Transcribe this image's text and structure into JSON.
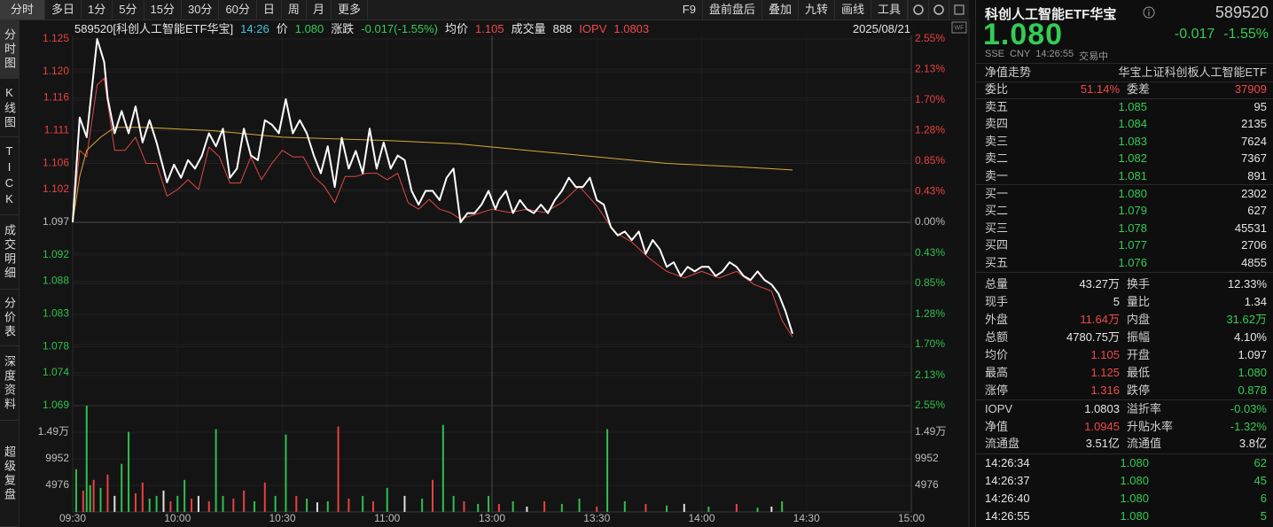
{
  "toolbar": {
    "periods": [
      "分时",
      "多日",
      "1分",
      "5分",
      "15分",
      "30分",
      "60分",
      "日",
      "周",
      "月",
      "更多"
    ],
    "tools": [
      "F9",
      "盘前盘后",
      "叠加",
      "九转",
      "画线",
      "工具"
    ]
  },
  "side_tabs": [
    "分时图",
    "K线图",
    "TICK",
    "成交明细",
    "分价表",
    "深度资料",
    "超级复盘"
  ],
  "info": {
    "code_name": "589520[科创人工智能ETF华宝]",
    "time": "14:26",
    "price": "1.080",
    "change_label": "涨跌",
    "change": "-0.017(-1.55%)",
    "avg": "1.105",
    "volume_label": "成交量",
    "volume": "888",
    "iopv": "1.0803",
    "date": "2025/08/21"
  },
  "chart": {
    "type": "line",
    "xlim": [
      0,
      240
    ],
    "xticks": [
      {
        "value": 0,
        "label": "09:30"
      },
      {
        "value": 30,
        "label": "10:00"
      },
      {
        "value": 60,
        "label": "10:30"
      },
      {
        "value": 90,
        "label": "11:00"
      },
      {
        "value": 120,
        "label": "13:00"
      },
      {
        "value": 150,
        "label": "13:30"
      },
      {
        "value": 180,
        "label": "14:00"
      },
      {
        "value": 210,
        "label": "14:30"
      },
      {
        "value": 240,
        "label": "15:00"
      }
    ],
    "ylim": [
      1.069,
      1.125
    ],
    "yticks": [
      1.125,
      {
        "value": 1.12,
        "label": "1.120"
      },
      1.116,
      1.111,
      1.106,
      1.102,
      1.097,
      1.092,
      1.088,
      1.083,
      1.078,
      1.074,
      1.069
    ],
    "y2lim": [
      -2.55,
      2.55
    ],
    "y2ticks": [
      {
        "value": 2.55,
        "label": "2.55%"
      },
      {
        "value": 2.13,
        "label": "2.13%"
      },
      {
        "value": 1.7,
        "label": "1.70%"
      },
      {
        "value": 1.28,
        "label": "1.28%"
      },
      {
        "value": 0.85,
        "label": "0.85%"
      },
      {
        "value": 0.43,
        "label": "0.43%"
      },
      {
        "value": 0,
        "label": "0.00%"
      },
      {
        "value": -0.43,
        "label": "0.43%"
      },
      {
        "value": -0.85,
        "label": "0.85%"
      },
      {
        "value": -1.28,
        "label": "1.28%"
      },
      {
        "value": -1.7,
        "label": "1.70%"
      },
      {
        "value": -2.13,
        "label": "2.13%"
      },
      {
        "value": -2.55,
        "label": "2.55%"
      }
    ],
    "series": [
      {
        "name": "价",
        "color": "#ffffff",
        "x": [
          0,
          2,
          4,
          6,
          7,
          9,
          10,
          12,
          14,
          16,
          18,
          20,
          22,
          24,
          27,
          29,
          31,
          33,
          35,
          37,
          39,
          41,
          43,
          45,
          47,
          49,
          51,
          53,
          55,
          57,
          59,
          61,
          63,
          65,
          67,
          69,
          71,
          73,
          75,
          77,
          79,
          81,
          83,
          85,
          87,
          89,
          91,
          93,
          95,
          97,
          99,
          101,
          103,
          105,
          107,
          109,
          111,
          113,
          115,
          117,
          119,
          121,
          122,
          124,
          126,
          128,
          130,
          132,
          134,
          136,
          138,
          140,
          142,
          144,
          146,
          148,
          150,
          152,
          154,
          156,
          158,
          160,
          162,
          164,
          166,
          168,
          170,
          172,
          174,
          176,
          178,
          180,
          182,
          184,
          186,
          188,
          190,
          192,
          194,
          196,
          198,
          200,
          202,
          204,
          206
        ],
        "values": [
          1.097,
          1.113,
          1.11,
          1.12,
          1.125,
          1.1215,
          1.116,
          1.1106,
          1.114,
          1.1106,
          1.1147,
          1.1092,
          1.1126,
          1.1092,
          1.1031,
          1.1058,
          1.1038,
          1.1065,
          1.1052,
          1.1072,
          1.1106,
          1.1086,
          1.1113,
          1.1038,
          1.1052,
          1.1113,
          1.1072,
          1.1065,
          1.1126,
          1.1119,
          1.1106,
          1.1158,
          1.1106,
          1.1126,
          1.1106,
          1.1072,
          1.1045,
          1.1086,
          1.1024,
          1.1099,
          1.1052,
          1.1079,
          1.1045,
          1.1113,
          1.1052,
          1.1092,
          1.1052,
          1.1072,
          1.1065,
          1.1018,
          1.0997,
          1.1018,
          1.1018,
          1.1004,
          1.1038,
          1.1052,
          1.097,
          1.0984,
          1.0984,
          1.0997,
          1.1018,
          1.099,
          1.1004,
          1.1018,
          1.0984,
          1.1004,
          1.099,
          1.0984,
          1.0997,
          1.0984,
          1.1004,
          1.1018,
          1.1038,
          1.1024,
          1.1024,
          1.1038,
          1.1004,
          1.0997,
          1.0963,
          1.095,
          1.0956,
          1.0943,
          1.0956,
          1.0922,
          1.0943,
          1.0929,
          1.0902,
          1.0909,
          1.0888,
          1.0902,
          1.0895,
          1.0902,
          1.0902,
          1.0888,
          1.0895,
          1.0909,
          1.0902,
          1.0888,
          1.0882,
          1.0895,
          1.0882,
          1.0875,
          1.0861,
          1.0834,
          1.08
        ]
      },
      {
        "name": "IOPV",
        "color": "#e04848",
        "x": [
          0,
          2,
          4,
          7,
          9,
          12,
          15,
          18,
          21,
          24,
          27,
          30,
          33,
          36,
          39,
          42,
          45,
          48,
          51,
          54,
          57,
          60,
          63,
          66,
          69,
          72,
          75,
          78,
          81,
          84,
          87,
          90,
          93,
          96,
          99,
          102,
          105,
          108,
          111,
          114,
          117,
          120,
          125,
          130,
          135,
          140,
          145,
          150,
          155,
          160,
          165,
          170,
          175,
          180,
          185,
          190,
          195,
          200,
          203,
          206
        ],
        "values": [
          1.097,
          1.108,
          1.107,
          1.118,
          1.119,
          1.108,
          1.108,
          1.11,
          1.106,
          1.106,
          1.101,
          1.102,
          1.1035,
          1.102,
          1.1085,
          1.107,
          1.103,
          1.103,
          1.107,
          1.1035,
          1.106,
          1.108,
          1.107,
          1.107,
          1.104,
          1.1025,
          1.1,
          1.104,
          1.104,
          1.1045,
          1.1045,
          1.1035,
          1.1045,
          1.1,
          1.099,
          1.1005,
          1.099,
          1.0985,
          1.0975,
          1.098,
          1.0985,
          1.099,
          1.0985,
          1.099,
          1.0985,
          1.1,
          1.1025,
          1.0995,
          1.0955,
          1.094,
          1.0915,
          1.0895,
          1.0885,
          1.0895,
          1.0885,
          1.0895,
          1.0875,
          1.0865,
          1.082,
          1.0795
        ]
      },
      {
        "name": "均价",
        "color": "#d9a93a",
        "x": [
          0,
          2,
          4,
          8,
          12,
          20,
          40,
          60,
          90,
          110,
          130,
          150,
          170,
          190,
          206
        ],
        "values": [
          1.097,
          1.104,
          1.108,
          1.11,
          1.1115,
          1.1115,
          1.111,
          1.11,
          1.1095,
          1.109,
          1.108,
          1.107,
          1.106,
          1.1055,
          1.105
        ]
      }
    ],
    "volume": {
      "type": "bar",
      "ylim": [
        0,
        19904
      ],
      "yticks": [
        {
          "value": 14928,
          "label": "1.49万"
        },
        9952,
        4976
      ],
      "x": [
        1,
        3,
        4,
        5,
        6,
        8,
        10,
        12,
        14,
        16,
        18,
        20,
        22,
        24,
        26,
        28,
        30,
        32,
        34,
        36,
        39,
        41,
        43,
        46,
        49,
        52,
        55,
        58,
        61,
        64,
        67,
        70,
        73,
        76,
        79,
        83,
        86,
        90,
        95,
        100,
        103,
        106,
        109,
        112,
        116,
        119,
        122,
        126,
        130,
        135,
        140,
        145,
        150,
        153,
        158,
        164,
        170,
        175,
        182,
        190,
        196,
        200,
        203
      ],
      "values": [
        8000,
        4000,
        19900,
        5000,
        6000,
        4500,
        7000,
        3000,
        9000,
        15000,
        3500,
        5500,
        2500,
        3000,
        4000,
        2000,
        3000,
        6000,
        2500,
        3000,
        2000,
        15500,
        3000,
        2500,
        4000,
        2000,
        5500,
        3000,
        14500,
        3000,
        2500,
        1800,
        2000,
        16000,
        2500,
        3000,
        2000,
        4500,
        3000,
        2500,
        6000,
        16300,
        3000,
        2000,
        1500,
        3000,
        1500,
        2000,
        1000,
        2000,
        1500,
        2500,
        1000,
        15500,
        2000,
        1500,
        1200,
        1500,
        1000,
        1500,
        800,
        1000,
        2000
      ],
      "colors": [
        "#2fbf4f",
        "#e84040",
        "#2fbf4f",
        "#2fbf4f",
        "#e84040",
        "#2fbf4f",
        "#e84040",
        "#e0e0e0",
        "#2fbf4f",
        "#2fbf4f",
        "#e84040",
        "#e84040",
        "#2fbf4f",
        "#2fbf4f",
        "#e0e0e0",
        "#e84040",
        "#2fbf4f",
        "#2fbf4f",
        "#e84040",
        "#e0e0e0",
        "#e84040",
        "#2fbf4f",
        "#2fbf4f",
        "#e84040",
        "#e84040",
        "#2fbf4f",
        "#e84040",
        "#2fbf4f",
        "#2fbf4f",
        "#e84040",
        "#2fbf4f",
        "#e0e0e0",
        "#2fbf4f",
        "#e84040",
        "#e84040",
        "#2fbf4f",
        "#e84040",
        "#2fbf4f",
        "#e0e0e0",
        "#2fbf4f",
        "#e84040",
        "#2fbf4f",
        "#2fbf4f",
        "#e84040",
        "#2fbf4f",
        "#2fbf4f",
        "#e84040",
        "#2fbf4f",
        "#e0e0e0",
        "#e84040",
        "#2fbf4f",
        "#2fbf4f",
        "#e84040",
        "#2fbf4f",
        "#2fbf4f",
        "#e84040",
        "#2fbf4f",
        "#e0e0e0",
        "#2fbf4f",
        "#e84040",
        "#2fbf4f",
        "#e0e0e0",
        "#2fbf4f"
      ]
    }
  },
  "panel": {
    "name": "科创人工智能ETF华宝",
    "code": "589520",
    "price": "1.080",
    "change": "-0.017",
    "change_pct": "-1.55%",
    "meta": [
      "SSE",
      "CNY",
      "14:26:55",
      "交易中"
    ],
    "nav_link": "净值走势",
    "full_name": "华宝上证科创板人工智能ETF",
    "ratio": [
      "委比",
      "51.14%",
      "委差",
      "37909"
    ],
    "asks": [
      [
        "卖五",
        "1.085",
        "95"
      ],
      [
        "卖四",
        "1.084",
        "2135"
      ],
      [
        "卖三",
        "1.083",
        "7624"
      ],
      [
        "卖二",
        "1.082",
        "7367"
      ],
      [
        "卖一",
        "1.081",
        "891"
      ]
    ],
    "bids": [
      [
        "买一",
        "1.080",
        "2302"
      ],
      [
        "买二",
        "1.079",
        "627"
      ],
      [
        "买三",
        "1.078",
        "45531"
      ],
      [
        "买四",
        "1.077",
        "2706"
      ],
      [
        "买五",
        "1.076",
        "4855"
      ]
    ],
    "stats": [
      [
        "总量",
        "43.27万",
        "换手",
        "12.33%"
      ],
      [
        "现手",
        "5",
        "量比",
        "1.34"
      ],
      [
        "外盘",
        "11.64万",
        "内盘",
        "31.62万"
      ],
      [
        "总额",
        "4780.75万",
        "振幅",
        "4.10%"
      ],
      [
        "均价",
        "1.105",
        "开盘",
        "1.097"
      ],
      [
        "最高",
        "1.125",
        "最低",
        "1.080"
      ],
      [
        "涨停",
        "1.316",
        "跌停",
        "0.878"
      ]
    ],
    "fund": [
      [
        "IOPV",
        "1.0803",
        "溢折率",
        "-0.03%"
      ],
      [
        "净值",
        "1.0945",
        "升贴水率",
        "-1.32%"
      ],
      [
        "流通盘",
        "3.51亿",
        "流通值",
        "3.8亿"
      ]
    ],
    "trades": [
      [
        "14:26:34",
        "1.080",
        "62"
      ],
      [
        "14:26:37",
        "1.080",
        "45"
      ],
      [
        "14:26:40",
        "1.080",
        "6"
      ],
      [
        "14:26:55",
        "1.080",
        "5"
      ]
    ]
  }
}
